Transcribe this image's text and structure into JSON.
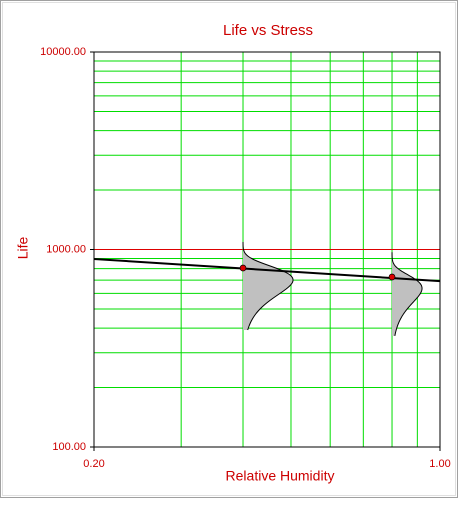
{
  "chart_data": {
    "type": "scatter",
    "title": "Life vs Stress",
    "xlabel": "Relative Humidity",
    "ylabel": "Life",
    "xscale": "log",
    "yscale": "log",
    "xlim": [
      0.2,
      1.0
    ],
    "ylim": [
      100,
      10000
    ],
    "xticks": [
      {
        "value": 0.2,
        "label": "0.20"
      },
      {
        "value": 1.0,
        "label": "1.00"
      }
    ],
    "yticks": [
      {
        "value": 100,
        "label": "100.00"
      },
      {
        "value": 1000,
        "label": "1000.00"
      },
      {
        "value": 10000,
        "label": "10000.00"
      }
    ],
    "grid": true,
    "grid_color": "#00dd00",
    "major_grid_color": "#dd0000",
    "text_color": "#cc0000",
    "series": [
      {
        "type": "scatter",
        "color": "#dd0000",
        "x": [
          0.4,
          0.8
        ],
        "values": [
          806,
          726
        ]
      },
      {
        "type": "line",
        "color": "#000000",
        "x": [
          0.2,
          1.0
        ],
        "values": [
          895,
          692
        ]
      }
    ]
  }
}
